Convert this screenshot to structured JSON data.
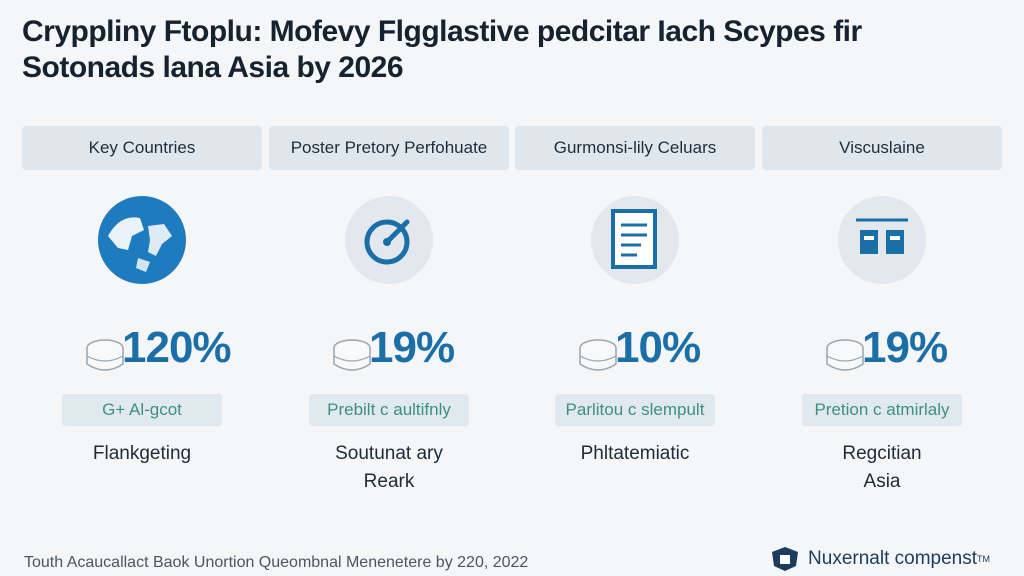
{
  "title": {
    "line1": "Crypplinу Ftoplu: Mofevy Flgglаstive pedcitаr Iаch Scypes fir",
    "line2": "Sotonads lana Asia by 2026"
  },
  "columns": [
    {
      "header": "Key Countries",
      "icon": "globe-icon",
      "stat_prefix": "1",
      "stat": "20%",
      "stat_full": "120%",
      "pill": "G+ Al-gcot",
      "desc": [
        "Flankgeting"
      ]
    },
    {
      "header": "Poster Pretory Perfohuate",
      "icon": "gauge-icon",
      "stat_prefix": "1",
      "stat": "19%",
      "stat_full": "19%",
      "pill": "Prеbilt c aultifnly",
      "desc": [
        "Soutunat ary",
        "Reark"
      ]
    },
    {
      "header": "Gurmonsi-lily Celuars",
      "icon": "document-icon",
      "stat_prefix": "1",
      "stat": "10%",
      "stat_full": "10%",
      "pill": "Parlitou c slempult",
      "desc": [
        "Phltatemiatic"
      ]
    },
    {
      "header": "Viscuslaine",
      "icon": "server-icon",
      "stat_prefix": "1",
      "stat": "19%",
      "stat_full": "19%",
      "pill": "Prеtion c atmirlaly",
      "desc": [
        "Regcitian",
        "Asia"
      ]
    }
  ],
  "footer": "Touth Acaucallact Baok Unortion Queombnal Menenetere by 220, 2022",
  "brand": {
    "name": "Nuxernalt compenst",
    "mark": "TM"
  },
  "colors": {
    "accent": "#1b6fa8",
    "teal": "#5fb39a",
    "header_bg": "#dfe7ec"
  }
}
